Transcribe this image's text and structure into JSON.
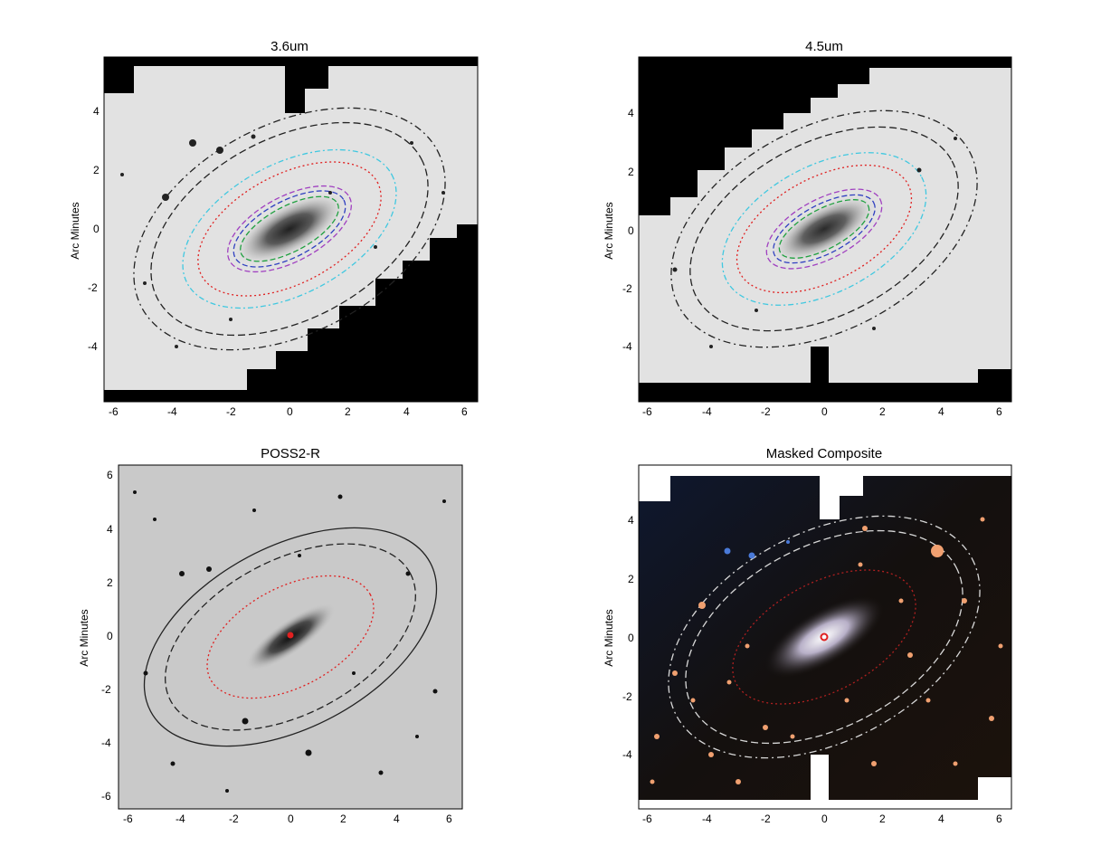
{
  "panels": [
    {
      "title": "3.6um",
      "ylabel": "Arc Minutes",
      "xticks": [
        "-6",
        "-4",
        "-2",
        "0",
        "2",
        "4",
        "6"
      ],
      "yticks": [
        "4",
        "2",
        "0",
        "-2",
        "-4"
      ]
    },
    {
      "title": "4.5um",
      "ylabel": "Arc Minutes",
      "xticks": [
        "-6",
        "-4",
        "-2",
        "0",
        "2",
        "4",
        "6"
      ],
      "yticks": [
        "4",
        "2",
        "0",
        "-2",
        "-4"
      ]
    },
    {
      "title": "POSS2-R",
      "ylabel": "Arc Minutes",
      "xticks": [
        "-6",
        "-4",
        "-2",
        "0",
        "2",
        "4",
        "6"
      ],
      "yticks": [
        "6",
        "4",
        "2",
        "0",
        "-2",
        "-4",
        "-6"
      ]
    },
    {
      "title": "Masked Composite",
      "ylabel": "Arc Minutes",
      "xticks": [
        "-6",
        "-4",
        "-2",
        "0",
        "2",
        "4",
        "6"
      ],
      "yticks": [
        "4",
        "2",
        "0",
        "-2",
        "-4"
      ]
    }
  ],
  "colors": {
    "ir_background": "#e2e2e2",
    "mask_black": "#000000",
    "poss_background": "#c9c9c9",
    "composite_background": "#14100e",
    "star_mask": "#f0a070",
    "contour_red": "#e02020",
    "contour_cyan": "#40c8e0",
    "contour_purple": "#a040c0",
    "contour_blue": "#3040c0",
    "contour_green": "#20a040",
    "contour_black": "#222222"
  }
}
